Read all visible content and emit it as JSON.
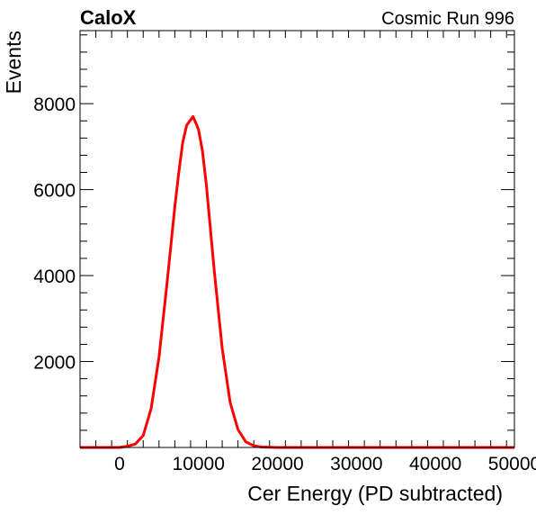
{
  "header": {
    "left_label": "CaloX",
    "right_label": "Cosmic Run 996"
  },
  "chart_data": {
    "type": "line",
    "xlabel": "Cer Energy (PD subtracted)",
    "ylabel": "Events",
    "xlim": [
      -5000,
      50000
    ],
    "ylim": [
      0,
      9700
    ],
    "x_ticks": [
      0,
      10000,
      20000,
      30000,
      40000,
      50000
    ],
    "x_tick_labels": [
      "0",
      "10000",
      "20000",
      "30000",
      "40000",
      "50000"
    ],
    "y_ticks": [
      2000,
      4000,
      6000,
      8000
    ],
    "y_tick_labels": [
      "2000",
      "4000",
      "6000",
      "8000"
    ],
    "grid": false,
    "legend": "none",
    "series": [
      {
        "color": "#ff0000",
        "x": [
          -5000,
          0,
          1000,
          2000,
          3000,
          4000,
          5000,
          6000,
          7000,
          7500,
          8000,
          8500,
          9000,
          9300,
          9600,
          10000,
          10500,
          11000,
          11500,
          12000,
          13000,
          14000,
          15000,
          16000,
          17000,
          18000,
          20000,
          30000,
          40000,
          50000
        ],
        "y": [
          0,
          0,
          30,
          80,
          280,
          900,
          2100,
          3800,
          5600,
          6400,
          7100,
          7500,
          7620,
          7700,
          7580,
          7400,
          6900,
          6100,
          5100,
          4100,
          2300,
          1050,
          420,
          130,
          40,
          10,
          0,
          0,
          0,
          0
        ]
      }
    ]
  }
}
